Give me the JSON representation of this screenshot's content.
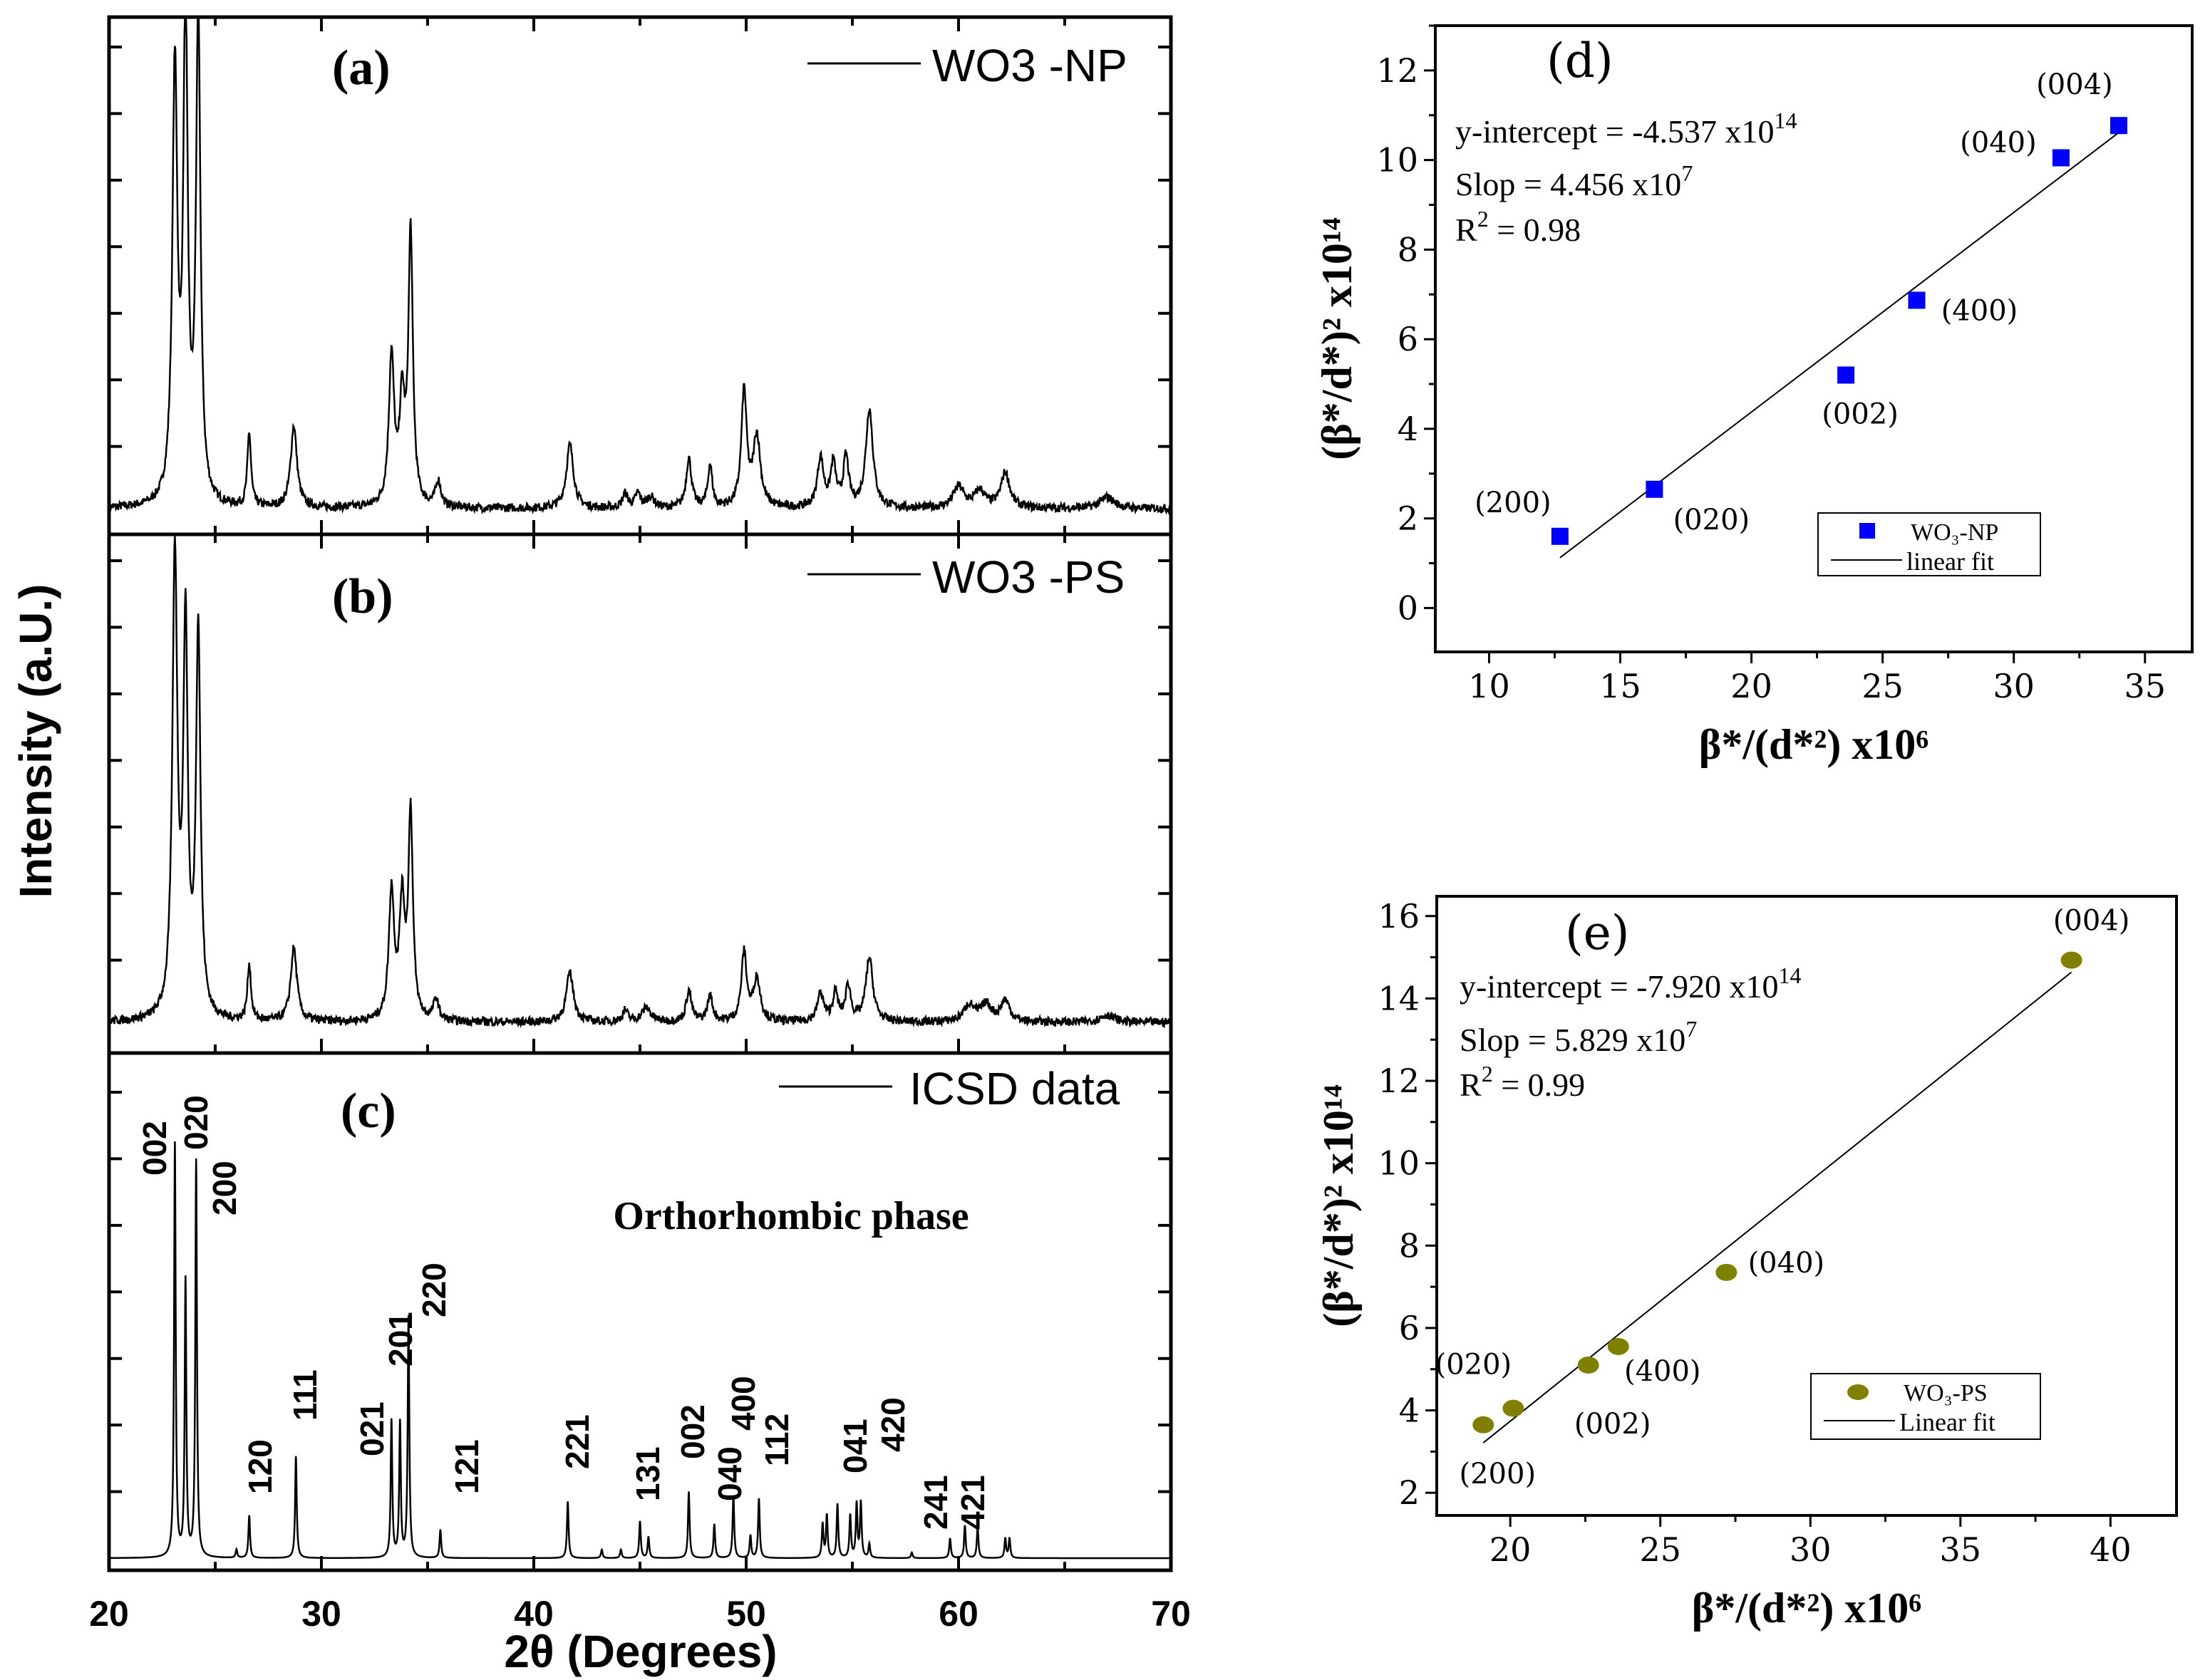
{
  "chart_data": [
    {
      "type": "line",
      "panel": "(a)",
      "legend": "WO3 -NP",
      "xlabel": "2θ (Degrees)",
      "ylabel": "Intensity (a.U.)",
      "xlim": [
        20,
        70
      ],
      "xticks": [
        "20",
        "30",
        "40",
        "50",
        "60",
        "70"
      ],
      "peaks": [
        [
          23.1,
          304,
          0.28
        ],
        [
          23.6,
          340,
          0.25
        ],
        [
          24.2,
          345,
          0.25
        ],
        [
          26.6,
          52,
          0.2
        ],
        [
          28.7,
          58,
          0.35
        ],
        [
          33.3,
          105,
          0.3
        ],
        [
          33.8,
          70,
          0.3
        ],
        [
          34.2,
          192,
          0.25
        ],
        [
          35.5,
          18,
          0.3
        ],
        [
          41.7,
          45,
          0.4
        ],
        [
          44.3,
          10,
          0.3
        ],
        [
          44.9,
          10,
          0.3
        ],
        [
          45.5,
          8,
          0.4
        ],
        [
          47.3,
          35,
          0.3
        ],
        [
          48.3,
          30,
          0.25
        ],
        [
          49.9,
          82,
          0.3
        ],
        [
          50.5,
          50,
          0.4
        ],
        [
          53.5,
          35,
          0.35
        ],
        [
          54.1,
          30,
          0.3
        ],
        [
          54.7,
          35,
          0.3
        ],
        [
          55.8,
          70,
          0.4
        ],
        [
          60.0,
          15,
          0.6
        ],
        [
          61.0,
          12,
          0.6
        ],
        [
          62.2,
          25,
          0.5
        ],
        [
          67.0,
          8,
          0.8
        ]
      ]
    },
    {
      "type": "line",
      "panel": "(b)",
      "legend": "WO3 -PS",
      "xlim": [
        20,
        70
      ],
      "peaks": [
        [
          23.1,
          325,
          0.28
        ],
        [
          23.6,
          270,
          0.25
        ],
        [
          24.2,
          275,
          0.25
        ],
        [
          26.6,
          40,
          0.2
        ],
        [
          28.7,
          52,
          0.35
        ],
        [
          33.3,
          90,
          0.3
        ],
        [
          33.8,
          80,
          0.3
        ],
        [
          34.2,
          145,
          0.25
        ],
        [
          35.4,
          15,
          0.3
        ],
        [
          41.7,
          35,
          0.4
        ],
        [
          44.3,
          8,
          0.3
        ],
        [
          45.3,
          10,
          0.5
        ],
        [
          47.3,
          22,
          0.3
        ],
        [
          48.3,
          18,
          0.3
        ],
        [
          49.9,
          48,
          0.3
        ],
        [
          50.5,
          30,
          0.4
        ],
        [
          53.5,
          20,
          0.35
        ],
        [
          54.2,
          20,
          0.3
        ],
        [
          54.8,
          25,
          0.3
        ],
        [
          55.8,
          45,
          0.4
        ],
        [
          60.5,
          12,
          0.6
        ],
        [
          61.3,
          12,
          0.6
        ],
        [
          62.2,
          15,
          0.5
        ],
        [
          67.0,
          5,
          0.8
        ]
      ]
    },
    {
      "type": "line",
      "panel": "(c)",
      "legend": "ICSD data",
      "annotation": "Orthorhombic phase",
      "xlim": [
        20,
        70
      ],
      "peaks": [
        [
          23.1,
          292,
          "002"
        ],
        [
          23.6,
          195,
          "020"
        ],
        [
          24.1,
          280,
          "200"
        ],
        [
          26.0,
          6,
          ""
        ],
        [
          26.6,
          30,
          "120"
        ],
        [
          28.8,
          72,
          "111"
        ],
        [
          33.3,
          97,
          "021"
        ],
        [
          33.7,
          95,
          ""
        ],
        [
          34.1,
          170,
          "201"
        ],
        [
          35.6,
          20,
          "121"
        ],
        [
          41.6,
          40,
          "221"
        ],
        [
          43.2,
          6,
          ""
        ],
        [
          44.1,
          6,
          ""
        ],
        [
          45.0,
          26,
          "131"
        ],
        [
          45.4,
          15,
          ""
        ],
        [
          47.3,
          47,
          "002"
        ],
        [
          48.5,
          24,
          "040"
        ],
        [
          49.4,
          44,
          "400"
        ],
        [
          50.2,
          16,
          ""
        ],
        [
          50.6,
          42,
          "112"
        ],
        [
          53.6,
          24,
          ""
        ],
        [
          53.8,
          30,
          ""
        ],
        [
          54.3,
          38,
          "041"
        ],
        [
          54.9,
          30,
          ""
        ],
        [
          55.2,
          38,
          ""
        ],
        [
          55.4,
          39,
          ""
        ],
        [
          55.8,
          10,
          ""
        ],
        [
          57.8,
          4,
          ""
        ],
        [
          59.6,
          14,
          "241"
        ],
        [
          60.3,
          23,
          "421"
        ],
        [
          60.9,
          22,
          ""
        ],
        [
          62.2,
          14,
          ""
        ],
        [
          62.4,
          14,
          ""
        ]
      ],
      "extra_labels": [
        {
          "at": 34.3,
          "text": "220"
        },
        {
          "at": 55.9,
          "text": "420"
        }
      ]
    },
    {
      "type": "scatter",
      "panel": "(d)",
      "xlabel": "β*/(d*²) x10⁶",
      "ylabel": "(β*/d*)² x10¹⁴",
      "xlim": [
        7.95,
        36.8
      ],
      "ylim": [
        -0.98,
        13.0
      ],
      "xticks": [
        10,
        15,
        20,
        25,
        30,
        35
      ],
      "yticks": [
        0,
        2,
        4,
        6,
        8,
        10,
        12
      ],
      "annotations": [
        "y-intercept = -4.537 x10",
        "14",
        "Slop = 4.456 x10",
        "7",
        "R",
        "2",
        " = 0.98"
      ],
      "legend": [
        "WO₃-NP",
        "linear fit"
      ],
      "marker_color": "#0000ff",
      "points": [
        {
          "x": 12.7,
          "y": 1.6,
          "label": "(200)"
        },
        {
          "x": 16.3,
          "y": 2.65,
          "label": "(020)"
        },
        {
          "x": 23.6,
          "y": 5.2,
          "label": "(002)"
        },
        {
          "x": 26.3,
          "y": 6.87,
          "label": "(400)"
        },
        {
          "x": 31.8,
          "y": 10.05,
          "label": "(040)"
        },
        {
          "x": 34.0,
          "y": 10.77,
          "label": "(004)"
        }
      ],
      "fit": {
        "slope": 0.4456,
        "intercept": -4.537,
        "x_range": [
          12.7,
          34.0
        ]
      }
    },
    {
      "type": "scatter",
      "panel": "(e)",
      "xlabel": "β*/(d*²) x10⁶",
      "ylabel": "(β*/d*)² x10¹⁴",
      "xlim": [
        17.55,
        42.2
      ],
      "ylim": [
        1.45,
        16.48
      ],
      "xticks": [
        20,
        25,
        30,
        35,
        40
      ],
      "yticks": [
        2,
        4,
        6,
        8,
        10,
        12,
        14,
        16
      ],
      "annotations": [
        "y-intercept = -7.920 x10",
        "14",
        "Slop = 5.829 x10",
        "7",
        "R",
        "2",
        " = 0.99"
      ],
      "legend": [
        "WO₃-PS",
        "Linear fit"
      ],
      "marker_color": "#808000",
      "points": [
        {
          "x": 19.1,
          "y": 3.65,
          "label": "(200)"
        },
        {
          "x": 20.1,
          "y": 4.05,
          "label": "(020)"
        },
        {
          "x": 22.6,
          "y": 5.1,
          "label": "(002)"
        },
        {
          "x": 23.6,
          "y": 5.55,
          "label": "(400)"
        },
        {
          "x": 27.2,
          "y": 7.35,
          "label": "(040)"
        },
        {
          "x": 38.7,
          "y": 14.93,
          "label": "(004)"
        }
      ],
      "fit": {
        "slope": 0.5829,
        "intercept": -7.92,
        "x_range": [
          19.1,
          38.7
        ]
      }
    }
  ]
}
